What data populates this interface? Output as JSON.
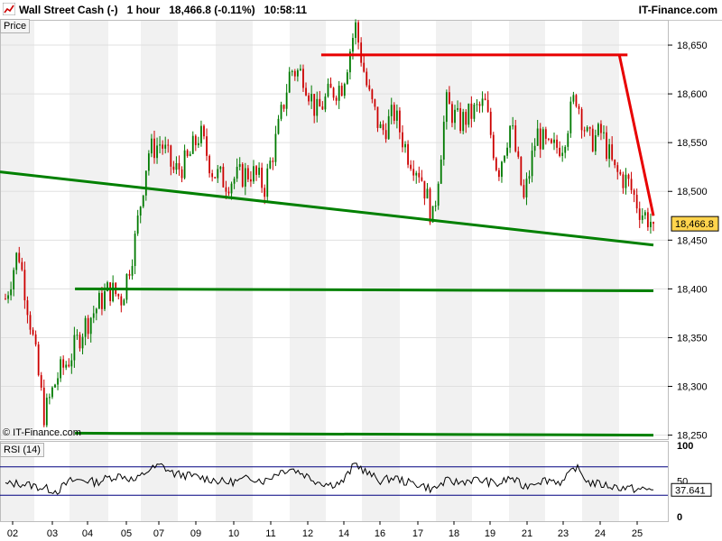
{
  "header": {
    "title": "Wall Street Cash (-)   1 hour   18,466.8 (-0.11%)   10:58:11",
    "brand": "IT-Finance.com"
  },
  "labels": {
    "price": "Price",
    "copyright": "© IT-Finance.com",
    "rsi": "RSI (14)"
  },
  "colors": {
    "up_candle": "#007a00",
    "down_candle": "#cc0000",
    "support_line": "#008000",
    "resistance_line": "#e80000",
    "rsi_band": "#000080",
    "current_price_tag": "#ffd44d"
  },
  "chart_data": [
    {
      "type": "candlestick",
      "title": "Wall Street Cash (-) 1 hour",
      "ylabel": "Price",
      "ylim": [
        18245,
        18675
      ],
      "yticks": [
        18250,
        18300,
        18350,
        18400,
        18450,
        18500,
        18550,
        18600,
        18650
      ],
      "ytick_labels": [
        "18,250",
        "18,300",
        "18,350",
        "18,400",
        "18,450",
        "18,500",
        "18,550",
        "18,600",
        "18,650"
      ],
      "xtick_labels": [
        "02",
        "03",
        "04",
        "05",
        "07",
        "09",
        "10",
        "11",
        "12",
        "14",
        "16",
        "17",
        "18",
        "19",
        "21",
        "23",
        "24",
        "25"
      ],
      "grid": true,
      "current_price": 18466.8,
      "current_price_label": "18,466.8",
      "close_path": [
        [
          0,
          18390
        ],
        [
          1,
          18440
        ],
        [
          2,
          18360
        ],
        [
          3,
          18270
        ],
        [
          4,
          18310
        ],
        [
          5,
          18330
        ],
        [
          6,
          18360
        ],
        [
          7,
          18380
        ],
        [
          8,
          18400
        ],
        [
          9,
          18390
        ],
        [
          10,
          18450
        ],
        [
          11,
          18540
        ],
        [
          12,
          18550
        ],
        [
          13,
          18520
        ],
        [
          14,
          18530
        ],
        [
          15,
          18560
        ],
        [
          16,
          18520
        ],
        [
          17,
          18510
        ],
        [
          18,
          18515
        ],
        [
          19,
          18520
        ],
        [
          20,
          18505
        ],
        [
          21,
          18560
        ],
        [
          22,
          18625
        ],
        [
          23,
          18620
        ],
        [
          24,
          18580
        ],
        [
          25,
          18600
        ],
        [
          26,
          18610
        ],
        [
          27,
          18670
        ],
        [
          28,
          18600
        ],
        [
          29,
          18560
        ],
        [
          30,
          18580
        ],
        [
          31,
          18540
        ],
        [
          32,
          18520
        ],
        [
          33,
          18470
        ],
        [
          34,
          18590
        ],
        [
          35,
          18570
        ],
        [
          36,
          18580
        ],
        [
          37,
          18590
        ],
        [
          38,
          18520
        ],
        [
          39,
          18570
        ],
        [
          40,
          18490
        ],
        [
          41,
          18560
        ],
        [
          42,
          18540
        ],
        [
          43,
          18550
        ],
        [
          44,
          18600
        ],
        [
          45,
          18550
        ],
        [
          46,
          18560
        ],
        [
          47,
          18520
        ],
        [
          48,
          18510
        ],
        [
          49,
          18480
        ],
        [
          50,
          18466.8
        ]
      ],
      "trendlines": [
        {
          "kind": "support",
          "from": [
            0,
            18520
          ],
          "to": [
            50,
            18445
          ]
        },
        {
          "kind": "support",
          "from": [
            3,
            18400
          ],
          "to": [
            50,
            18398
          ]
        },
        {
          "kind": "support",
          "from": [
            3,
            18252
          ],
          "to": [
            50,
            18250
          ]
        },
        {
          "kind": "resistance",
          "from": [
            22,
            18640
          ],
          "to": [
            48,
            18640
          ]
        },
        {
          "kind": "resistance",
          "from": [
            45,
            18640
          ],
          "to": [
            50,
            18475
          ]
        }
      ]
    },
    {
      "type": "line",
      "title": "RSI (14)",
      "ylim": [
        0,
        100
      ],
      "yticks": [
        0,
        50,
        100
      ],
      "bands": [
        30,
        70
      ],
      "current_value": 37.641,
      "current_value_label": "37.641",
      "series": [
        {
          "name": "RSI (14)",
          "values": [
            45,
            47,
            44,
            40,
            36,
            50,
            52,
            48,
            55,
            58,
            50,
            65,
            72,
            60,
            58,
            55,
            52,
            48,
            50,
            55,
            50,
            62,
            68,
            60,
            50,
            45,
            48,
            75,
            60,
            50,
            55,
            48,
            45,
            38,
            50,
            48,
            52,
            50,
            45,
            55,
            42,
            50,
            52,
            48,
            70,
            48,
            45,
            42,
            40,
            38,
            37.641
          ]
        }
      ]
    }
  ]
}
